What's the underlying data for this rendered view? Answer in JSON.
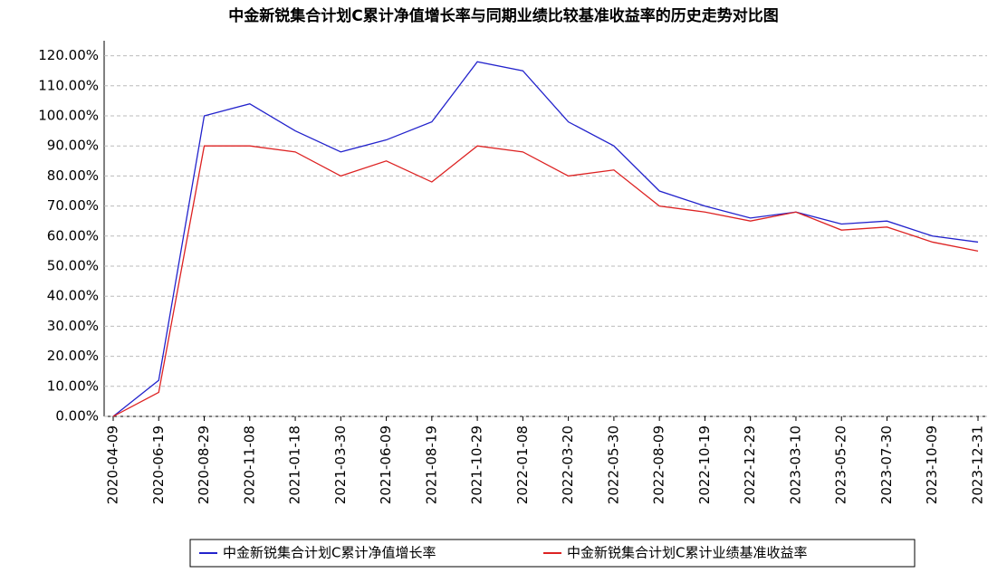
{
  "chart_data": {
    "type": "line",
    "title": "中金新锐集合计划C累计净值增长率与同期业绩比较基准收益率的历史走势对比图",
    "categories": [
      "2020-04-09",
      "2020-06-19",
      "2020-08-29",
      "2020-11-08",
      "2021-01-18",
      "2021-03-30",
      "2021-06-09",
      "2021-08-19",
      "2021-10-29",
      "2022-01-08",
      "2022-03-20",
      "2022-05-30",
      "2022-08-09",
      "2022-10-19",
      "2022-12-29",
      "2023-03-10",
      "2023-05-20",
      "2023-07-30",
      "2023-10-09",
      "2023-12-31"
    ],
    "series": [
      {
        "name": "中金新锐集合计划C累计净值增长率",
        "color": "#2222cc",
        "values": [
          0,
          12,
          100,
          104,
          95,
          88,
          92,
          98,
          118,
          115,
          98,
          90,
          75,
          70,
          66,
          68,
          64,
          65,
          60,
          58
        ]
      },
      {
        "name": "中金新锐集合计划C累计业绩基准收益率",
        "color": "#dd2222",
        "values": [
          0,
          8,
          90,
          90,
          88,
          80,
          85,
          78,
          90,
          88,
          80,
          82,
          70,
          68,
          65,
          68,
          62,
          63,
          58,
          55
        ]
      }
    ],
    "ylim": [
      0,
      125
    ],
    "yticks": [
      {
        "value": 0,
        "label": "0.00%"
      },
      {
        "value": 10,
        "label": "10.00%"
      },
      {
        "value": 20,
        "label": "20.00%"
      },
      {
        "value": 30,
        "label": "30.00%"
      },
      {
        "value": 40,
        "label": "40.00%"
      },
      {
        "value": 50,
        "label": "50.00%"
      },
      {
        "value": 60,
        "label": "60.00%"
      },
      {
        "value": 70,
        "label": "70.00%"
      },
      {
        "value": 80,
        "label": "80.00%"
      },
      {
        "value": 90,
        "label": "90.00%"
      },
      {
        "value": 100,
        "label": "100.00%"
      },
      {
        "value": 110,
        "label": "110.00%"
      },
      {
        "value": 120,
        "label": "120.00%"
      }
    ],
    "grid": true
  }
}
